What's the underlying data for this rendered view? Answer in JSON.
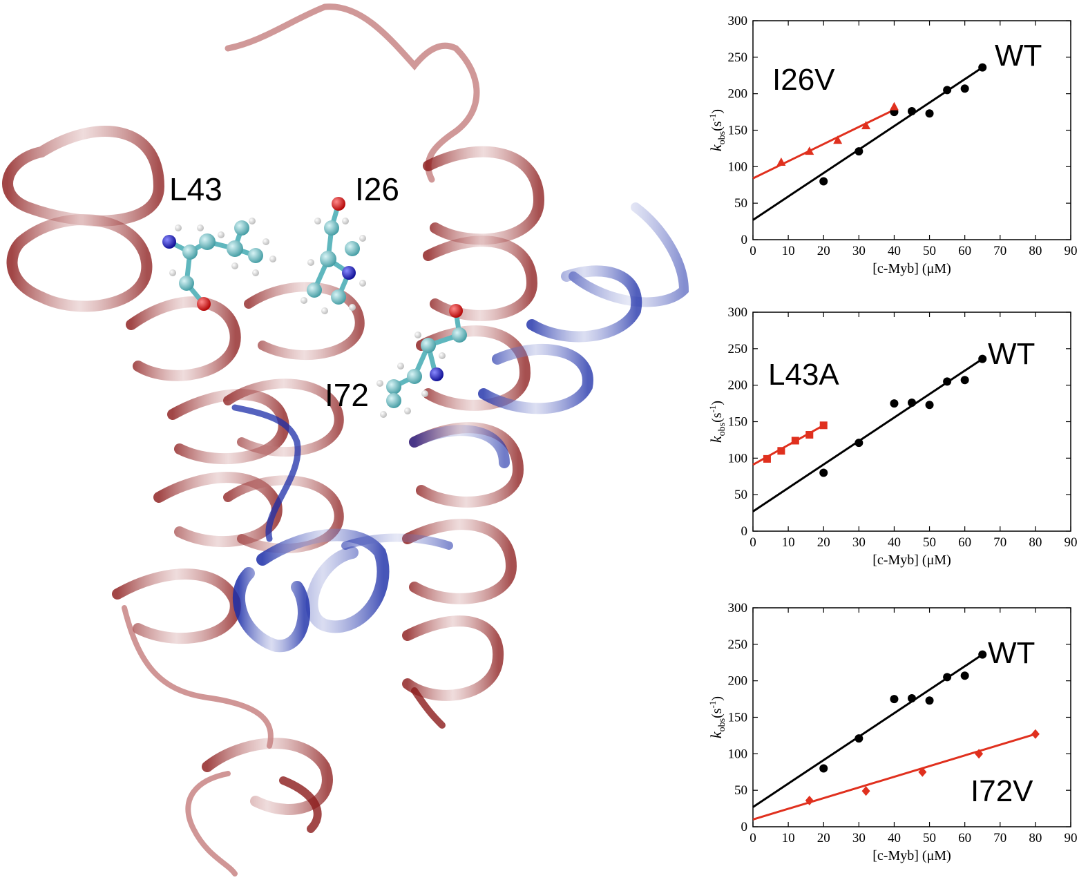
{
  "structure": {
    "labels": {
      "l43": "L43",
      "i26": "I26",
      "i72": "I72"
    },
    "colors": {
      "ribbon_red": "#8b1a1a",
      "ribbon_blue": "#1c2ea8",
      "carbon": "#5fb7be",
      "hydrogen": "#ffffff",
      "oxygen": "#d40000",
      "nitrogen": "#1010c0"
    }
  },
  "chart_data": [
    {
      "type": "scatter",
      "mutant_label": "I26V",
      "wt_label": "WT",
      "xlabel": "[c-Myb] (μM)",
      "ylabel_main": "k",
      "ylabel_sub": "obs",
      "ylabel_unit": "(s",
      "ylabel_exp": "-1",
      "ylabel_close": ")",
      "xlim": [
        0,
        90
      ],
      "ylim": [
        0,
        300
      ],
      "xticks": [
        0,
        10,
        20,
        30,
        40,
        50,
        60,
        70,
        80,
        90
      ],
      "yticks": [
        0,
        50,
        100,
        150,
        200,
        250,
        300
      ],
      "series": [
        {
          "color": "#000000",
          "marker": "circle",
          "x": [
            20,
            30,
            40,
            45,
            50,
            55,
            60,
            65
          ],
          "y": [
            80,
            121,
            175,
            176,
            173,
            205,
            207,
            236
          ],
          "fit": {
            "x": [
              0,
              65
            ],
            "y": [
              27,
              236
            ]
          }
        },
        {
          "color": "#e0301e",
          "marker": "triangle",
          "x": [
            8,
            16,
            24,
            32,
            40
          ],
          "y": [
            106,
            121,
            136,
            156,
            182
          ],
          "fit": {
            "x": [
              0,
              40
            ],
            "y": [
              84,
              178
            ]
          }
        }
      ]
    },
    {
      "type": "scatter",
      "mutant_label": "L43A",
      "wt_label": "WT",
      "xlabel": "[c-Myb] (μM)",
      "ylabel_main": "k",
      "ylabel_sub": "obs",
      "ylabel_unit": "(s",
      "ylabel_exp": "-1",
      "ylabel_close": ")",
      "xlim": [
        0,
        90
      ],
      "ylim": [
        0,
        300
      ],
      "xticks": [
        0,
        10,
        20,
        30,
        40,
        50,
        60,
        70,
        80,
        90
      ],
      "yticks": [
        0,
        50,
        100,
        150,
        200,
        250,
        300
      ],
      "series": [
        {
          "color": "#000000",
          "marker": "circle",
          "x": [
            20,
            30,
            40,
            45,
            50,
            55,
            60,
            65
          ],
          "y": [
            80,
            121,
            175,
            176,
            173,
            205,
            207,
            236
          ],
          "fit": {
            "x": [
              0,
              65
            ],
            "y": [
              27,
              236
            ]
          }
        },
        {
          "color": "#e0301e",
          "marker": "square",
          "x": [
            4,
            8,
            12,
            16,
            20
          ],
          "y": [
            99,
            110,
            124,
            132,
            145
          ],
          "fit": {
            "x": [
              0,
              20
            ],
            "y": [
              91,
              145
            ]
          }
        }
      ]
    },
    {
      "type": "scatter",
      "mutant_label": "I72V",
      "wt_label": "WT",
      "xlabel": "[c-Myb] (μM)",
      "ylabel_main": "k",
      "ylabel_sub": "obs",
      "ylabel_unit": "(s",
      "ylabel_exp": "-1",
      "ylabel_close": ")",
      "xlim": [
        0,
        90
      ],
      "ylim": [
        0,
        300
      ],
      "xticks": [
        0,
        10,
        20,
        30,
        40,
        50,
        60,
        70,
        80,
        90
      ],
      "yticks": [
        0,
        50,
        100,
        150,
        200,
        250,
        300
      ],
      "series": [
        {
          "color": "#000000",
          "marker": "circle",
          "x": [
            20,
            30,
            40,
            45,
            50,
            55,
            60,
            65
          ],
          "y": [
            80,
            121,
            175,
            176,
            173,
            205,
            207,
            236
          ],
          "fit": {
            "x": [
              0,
              65
            ],
            "y": [
              27,
              236
            ]
          }
        },
        {
          "color": "#e0301e",
          "marker": "diamond",
          "x": [
            16,
            32,
            48,
            64,
            80
          ],
          "y": [
            36,
            49,
            75,
            100,
            127
          ],
          "fit": {
            "x": [
              0,
              80
            ],
            "y": [
              10,
              127
            ]
          }
        }
      ]
    }
  ]
}
